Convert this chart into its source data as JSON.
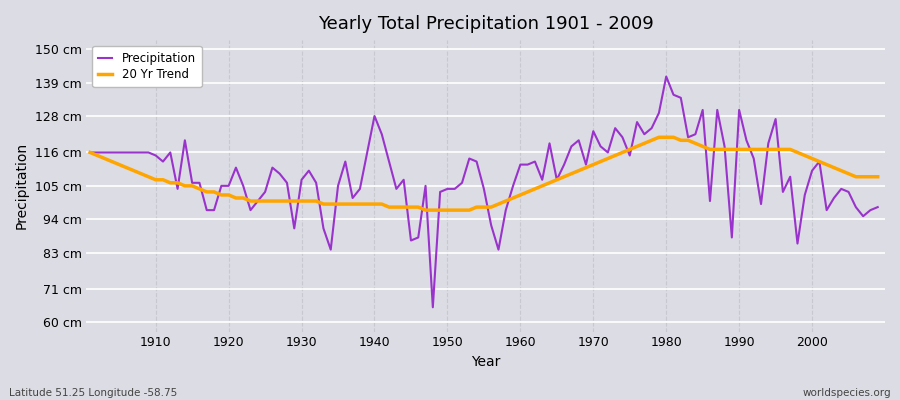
{
  "title": "Yearly Total Precipitation 1901 - 2009",
  "xlabel": "Year",
  "ylabel": "Precipitation",
  "lat_lon_label": "Latitude 51.25 Longitude -58.75",
  "source_label": "worldspecies.org",
  "line_color": "#9933CC",
  "trend_color": "#FFA500",
  "bg_color": "#DCDCE4",
  "grid_color_h": "#FFFFFF",
  "grid_color_v": "#C8C8D0",
  "ytick_labels": [
    "60 cm",
    "71 cm",
    "83 cm",
    "94 cm",
    "105 cm",
    "116 cm",
    "128 cm",
    "139 cm",
    "150 cm"
  ],
  "ytick_values": [
    60,
    71,
    83,
    94,
    105,
    116,
    128,
    139,
    150
  ],
  "ylim": [
    57,
    153
  ],
  "xlim": [
    1900.5,
    2010
  ],
  "years": [
    1901,
    1902,
    1903,
    1904,
    1905,
    1906,
    1907,
    1908,
    1909,
    1910,
    1911,
    1912,
    1913,
    1914,
    1915,
    1916,
    1917,
    1918,
    1919,
    1920,
    1921,
    1922,
    1923,
    1924,
    1925,
    1926,
    1927,
    1928,
    1929,
    1930,
    1931,
    1932,
    1933,
    1934,
    1935,
    1936,
    1937,
    1938,
    1939,
    1940,
    1941,
    1942,
    1943,
    1944,
    1945,
    1946,
    1947,
    1948,
    1949,
    1950,
    1951,
    1952,
    1953,
    1954,
    1955,
    1956,
    1957,
    1958,
    1959,
    1960,
    1961,
    1962,
    1963,
    1964,
    1965,
    1966,
    1967,
    1968,
    1969,
    1970,
    1971,
    1972,
    1973,
    1974,
    1975,
    1976,
    1977,
    1978,
    1979,
    1980,
    1981,
    1982,
    1983,
    1984,
    1985,
    1986,
    1987,
    1988,
    1989,
    1990,
    1991,
    1992,
    1993,
    1994,
    1995,
    1996,
    1997,
    1998,
    1999,
    2000,
    2001,
    2002,
    2003,
    2004,
    2005,
    2006,
    2007,
    2008,
    2009
  ],
  "precip": [
    116,
    116,
    116,
    116,
    116,
    116,
    116,
    116,
    116,
    115,
    113,
    116,
    104,
    120,
    106,
    106,
    97,
    97,
    105,
    105,
    111,
    105,
    97,
    100,
    103,
    111,
    109,
    106,
    91,
    107,
    110,
    106,
    91,
    84,
    105,
    113,
    101,
    104,
    116,
    128,
    122,
    113,
    104,
    107,
    87,
    88,
    105,
    65,
    103,
    104,
    104,
    106,
    114,
    113,
    104,
    92,
    84,
    97,
    105,
    112,
    112,
    113,
    107,
    119,
    107,
    112,
    118,
    120,
    112,
    123,
    118,
    116,
    124,
    121,
    115,
    126,
    122,
    124,
    129,
    141,
    135,
    134,
    121,
    122,
    130,
    100,
    130,
    118,
    88,
    130,
    120,
    114,
    99,
    119,
    127,
    103,
    108,
    86,
    102,
    110,
    113,
    97,
    101,
    104,
    103,
    98,
    95,
    97,
    98
  ],
  "trend": [
    116,
    115,
    114,
    113,
    112,
    111,
    110,
    109,
    108,
    107,
    107,
    106,
    106,
    105,
    105,
    104,
    103,
    103,
    102,
    102,
    101,
    101,
    100,
    100,
    100,
    100,
    100,
    100,
    100,
    100,
    100,
    100,
    99,
    99,
    99,
    99,
    99,
    99,
    99,
    99,
    99,
    98,
    98,
    98,
    98,
    98,
    97,
    97,
    97,
    97,
    97,
    97,
    97,
    98,
    98,
    98,
    99,
    100,
    101,
    102,
    103,
    104,
    105,
    106,
    107,
    108,
    109,
    110,
    111,
    112,
    113,
    114,
    115,
    116,
    117,
    118,
    119,
    120,
    121,
    121,
    121,
    120,
    120,
    119,
    118,
    117,
    117,
    117,
    117,
    117,
    117,
    117,
    117,
    117,
    117,
    117,
    117,
    116,
    115,
    114,
    113,
    112,
    111,
    110,
    109,
    108,
    108,
    108,
    108
  ]
}
